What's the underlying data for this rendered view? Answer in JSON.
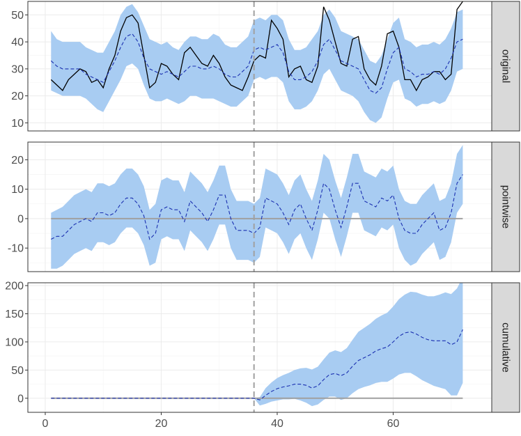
{
  "chart_data": {
    "type": "line",
    "x": {
      "min": 1,
      "max": 72,
      "ticks": [
        0,
        20,
        40,
        60
      ],
      "range": [
        -3,
        77
      ]
    },
    "intervention_x": 36,
    "colors": {
      "band": "#a8ccf2",
      "predicted": "#1a2fb0",
      "actual": "#000000",
      "zero": "#a0a0a0",
      "intervention": "#a0a0a0",
      "panel_border": "#333333",
      "strip_fill": "#d9d9d9",
      "grid_major": "#ebebeb",
      "grid_minor": "#f5f5f5"
    },
    "panels": [
      {
        "label": "original",
        "ylim": [
          7,
          55
        ],
        "yticks": [
          10,
          20,
          30,
          40,
          50
        ],
        "series": {
          "actual": {
            "x": [
              1,
              2,
              3,
              4,
              5,
              6,
              7,
              8,
              9,
              10,
              11,
              12,
              13,
              14,
              15,
              16,
              17,
              18,
              19,
              20,
              21,
              22,
              23,
              24,
              25,
              26,
              27,
              28,
              29,
              30,
              31,
              32,
              33,
              34,
              35,
              36,
              37,
              38,
              39,
              40,
              41,
              42,
              43,
              44,
              45,
              46,
              47,
              48,
              49,
              50,
              51,
              52,
              53,
              54,
              55,
              56,
              57,
              58,
              59,
              60,
              61,
              62,
              63,
              64,
              65,
              66,
              67,
              68,
              69,
              70,
              71,
              72
            ],
            "y": [
              26,
              24,
              22,
              26,
              28,
              30,
              29,
              25,
              26,
              23,
              30,
              35,
              44,
              49,
              50,
              47,
              35,
              23,
              25,
              32,
              31,
              28,
              26,
              36,
              38,
              35,
              32,
              31,
              35,
              32,
              27,
              24,
              23,
              22,
              27,
              33,
              35,
              34,
              48,
              45,
              41,
              27,
              30,
              31,
              26,
              25,
              31,
              53,
              48,
              40,
              32,
              31,
              41,
              42,
              30,
              26,
              24,
              31,
              43,
              44,
              38,
              26,
              26,
              22,
              26,
              27,
              29,
              29,
              26,
              28,
              52,
              55
            ]
          },
          "predicted": {
            "x": [
              1,
              2,
              3,
              4,
              5,
              6,
              7,
              8,
              9,
              10,
              11,
              12,
              13,
              14,
              15,
              16,
              17,
              18,
              19,
              20,
              21,
              22,
              23,
              24,
              25,
              26,
              27,
              28,
              29,
              30,
              31,
              32,
              33,
              34,
              35,
              36,
              37,
              38,
              39,
              40,
              41,
              42,
              43,
              44,
              45,
              46,
              47,
              48,
              49,
              50,
              51,
              52,
              53,
              54,
              55,
              56,
              57,
              58,
              59,
              60,
              61,
              62,
              63,
              64,
              65,
              66,
              67,
              68,
              69,
              70,
              71,
              72
            ],
            "y": [
              33,
              31,
              30,
              30,
              30,
              30,
              28,
              27,
              26,
              25,
              29,
              33,
              38,
              42,
              43,
              40,
              34,
              30,
              29,
              28,
              29,
              28,
              27,
              29,
              31,
              31,
              30,
              30,
              31,
              30,
              28,
              27,
              27,
              29,
              31,
              37,
              38,
              37,
              38,
              39,
              36,
              29,
              26,
              26,
              27,
              29,
              33,
              39,
              41,
              37,
              33,
              32,
              31,
              30,
              26,
              22,
              21,
              23,
              30,
              36,
              38,
              30,
              29,
              27,
              28,
              28,
              29,
              28,
              30,
              34,
              40,
              41
            ]
          },
          "band_lo": [
            22,
            21,
            20,
            20,
            20,
            20,
            19,
            17,
            15,
            14,
            18,
            22,
            26,
            31,
            32,
            30,
            24,
            19,
            18,
            18,
            19,
            18,
            17,
            18,
            20,
            20,
            19,
            19,
            19,
            18,
            17,
            16,
            16,
            18,
            20,
            26,
            27,
            26,
            27,
            27,
            25,
            18,
            15,
            15,
            16,
            18,
            22,
            28,
            30,
            26,
            22,
            21,
            20,
            18,
            14,
            11,
            10,
            12,
            19,
            25,
            26,
            19,
            18,
            16,
            17,
            17,
            18,
            17,
            18,
            22,
            29,
            30
          ],
          "band_hi": [
            44,
            41,
            40,
            40,
            40,
            40,
            38,
            37,
            36,
            36,
            40,
            44,
            50,
            53,
            54,
            51,
            46,
            41,
            40,
            39,
            40,
            38,
            37,
            40,
            42,
            42,
            41,
            41,
            43,
            42,
            39,
            38,
            38,
            40,
            42,
            48,
            49,
            48,
            50,
            50,
            48,
            41,
            37,
            37,
            38,
            41,
            44,
            50,
            52,
            49,
            44,
            43,
            42,
            41,
            37,
            33,
            32,
            35,
            41,
            47,
            49,
            41,
            40,
            38,
            39,
            39,
            40,
            39,
            41,
            45,
            51,
            52
          ]
        }
      },
      {
        "label": "pointwise",
        "ylim": [
          -18,
          26
        ],
        "yticks": [
          -10,
          0,
          10,
          20
        ],
        "series": {
          "predicted": {
            "x": [
              1,
              2,
              3,
              4,
              5,
              6,
              7,
              8,
              9,
              10,
              11,
              12,
              13,
              14,
              15,
              16,
              17,
              18,
              19,
              20,
              21,
              22,
              23,
              24,
              25,
              26,
              27,
              28,
              29,
              30,
              31,
              32,
              33,
              34,
              35,
              36,
              37,
              38,
              39,
              40,
              41,
              42,
              43,
              44,
              45,
              46,
              47,
              48,
              49,
              50,
              51,
              52,
              53,
              54,
              55,
              56,
              57,
              58,
              59,
              60,
              61,
              62,
              63,
              64,
              65,
              66,
              67,
              68,
              69,
              70,
              71,
              72
            ],
            "y": [
              -7,
              -6,
              -6,
              -4,
              -2,
              -1,
              0,
              -1,
              2,
              2,
              1,
              2,
              5,
              7,
              7,
              5,
              1,
              -7,
              -5,
              3,
              4,
              3,
              3,
              -1,
              6,
              4,
              2,
              -1,
              3,
              8,
              8,
              0,
              -4,
              -4,
              -4,
              -5,
              -3,
              7,
              6,
              5,
              2,
              -2,
              3,
              5,
              0,
              -4,
              3,
              12,
              10,
              3,
              -3,
              4,
              12,
              12,
              6,
              5,
              4,
              7,
              6,
              8,
              0,
              -4,
              -5,
              -5,
              -2,
              0,
              2,
              -4,
              -3,
              2,
              12,
              15
            ]
          },
          "band_lo": [
            -17,
            -17,
            -16,
            -14,
            -12,
            -11,
            -10,
            -11,
            -8,
            -8,
            -9,
            -8,
            -5,
            -3,
            -3,
            -5,
            -9,
            -16,
            -15,
            -7,
            -6,
            -7,
            -7,
            -11,
            -4,
            -6,
            -8,
            -11,
            -7,
            -2,
            -2,
            -10,
            -14,
            -14,
            -14,
            -15,
            -13,
            -3,
            -4,
            -5,
            -8,
            -12,
            -7,
            -5,
            -10,
            -14,
            -7,
            2,
            0,
            -7,
            -13,
            -6,
            2,
            2,
            -4,
            -5,
            -6,
            -3,
            -4,
            -2,
            -10,
            -14,
            -16,
            -15,
            -12,
            -10,
            -8,
            -14,
            -13,
            -8,
            2,
            5
          ],
          "band_hi": [
            2,
            3,
            4,
            6,
            8,
            9,
            10,
            9,
            12,
            12,
            11,
            12,
            15,
            17,
            17,
            15,
            11,
            3,
            5,
            13,
            14,
            13,
            13,
            9,
            16,
            14,
            12,
            9,
            13,
            18,
            18,
            10,
            6,
            6,
            6,
            5,
            7,
            17,
            16,
            15,
            12,
            8,
            13,
            15,
            10,
            6,
            13,
            22,
            20,
            13,
            7,
            14,
            22,
            22,
            16,
            15,
            14,
            17,
            16,
            18,
            10,
            6,
            5,
            5,
            8,
            10,
            12,
            6,
            7,
            12,
            22,
            25
          ]
        }
      },
      {
        "label": "cumulative",
        "ylim": [
          -25,
          205
        ],
        "yticks": [
          0,
          50,
          100,
          150,
          200
        ],
        "series": {
          "predicted": {
            "x": [
              1,
              2,
              3,
              4,
              5,
              6,
              7,
              8,
              9,
              10,
              11,
              12,
              13,
              14,
              15,
              16,
              17,
              18,
              19,
              20,
              21,
              22,
              23,
              24,
              25,
              26,
              27,
              28,
              29,
              30,
              31,
              32,
              33,
              34,
              35,
              36,
              37,
              38,
              39,
              40,
              41,
              42,
              43,
              44,
              45,
              46,
              47,
              48,
              49,
              50,
              51,
              52,
              53,
              54,
              55,
              56,
              57,
              58,
              59,
              60,
              61,
              62,
              63,
              64,
              65,
              66,
              67,
              68,
              69,
              70,
              71,
              72
            ],
            "y": [
              0,
              0,
              0,
              0,
              0,
              0,
              0,
              0,
              0,
              0,
              0,
              0,
              0,
              0,
              0,
              0,
              0,
              0,
              0,
              0,
              0,
              0,
              0,
              0,
              0,
              0,
              0,
              0,
              0,
              0,
              0,
              0,
              0,
              0,
              0,
              0,
              -3,
              5,
              12,
              17,
              20,
              22,
              25,
              25,
              23,
              18,
              22,
              33,
              42,
              44,
              40,
              45,
              57,
              67,
              72,
              77,
              84,
              88,
              91,
              100,
              110,
              116,
              118,
              114,
              108,
              104,
              102,
              102,
              102,
              95,
              100,
              122
            ]
          },
          "band_lo": [
            0,
            0,
            0,
            0,
            0,
            0,
            0,
            0,
            0,
            0,
            0,
            0,
            0,
            0,
            0,
            0,
            0,
            0,
            0,
            0,
            0,
            0,
            0,
            0,
            0,
            0,
            0,
            0,
            0,
            0,
            0,
            0,
            0,
            0,
            0,
            0,
            -13,
            -10,
            -6,
            -4,
            -2,
            -2,
            -1,
            -4,
            -8,
            -14,
            -11,
            -3,
            3,
            3,
            -3,
            0,
            9,
            16,
            20,
            23,
            27,
            29,
            29,
            35,
            42,
            45,
            45,
            39,
            32,
            27,
            22,
            19,
            16,
            5,
            5,
            27
          ],
          "band_hi": [
            0,
            0,
            0,
            0,
            0,
            0,
            0,
            0,
            0,
            0,
            0,
            0,
            0,
            0,
            0,
            0,
            0,
            0,
            0,
            0,
            0,
            0,
            0,
            0,
            0,
            0,
            0,
            0,
            0,
            0,
            0,
            0,
            0,
            0,
            0,
            0,
            2,
            18,
            28,
            36,
            41,
            45,
            50,
            53,
            54,
            51,
            56,
            69,
            81,
            85,
            82,
            89,
            104,
            118,
            125,
            132,
            141,
            147,
            152,
            163,
            176,
            184,
            189,
            188,
            184,
            181,
            181,
            184,
            188,
            185,
            195,
            215
          ]
        }
      }
    ]
  }
}
